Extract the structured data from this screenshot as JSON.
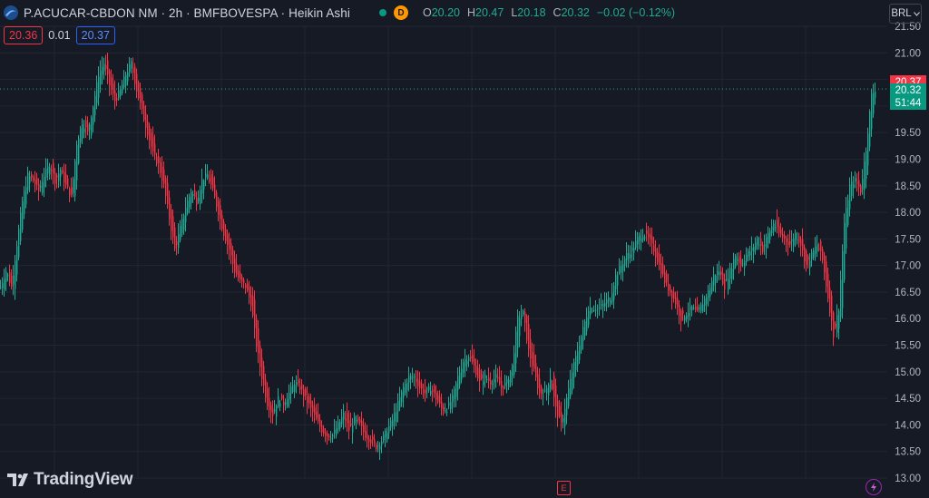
{
  "header": {
    "symbol_title": "P.ACUCAR-CBDON NM · 2h · BMFBOVESPA · Heikin Ashi",
    "delay_badge": "D",
    "ohlc": {
      "o_label": "O",
      "o": "20.20",
      "h_label": "H",
      "h": "20.47",
      "l_label": "L",
      "l": "20.18",
      "c_label": "C",
      "c": "20.32",
      "change": "−0.02 (−0.12%)"
    }
  },
  "trade": {
    "sell": "20.36",
    "spread": "0.01",
    "buy": "20.37"
  },
  "currency": "BRL",
  "branding": "TradingView",
  "markers": {
    "earnings": "E"
  },
  "colors": {
    "up": "#22ab94",
    "down": "#f23645",
    "bg": "#161a25",
    "grid": "#232632",
    "ask_label": "#f23645",
    "last_label": "#089981"
  },
  "price_labels": {
    "ask": "20.37",
    "last": "20.32",
    "countdown": "51:44"
  },
  "chart_data": {
    "type": "candlestick",
    "style": "Heikin Ashi",
    "interval": "2h",
    "ylim": [
      13.0,
      21.5
    ],
    "y_ticks": [
      "21.50",
      "21.00",
      "20.50",
      "20.00",
      "19.50",
      "19.00",
      "18.50",
      "18.00",
      "17.50",
      "17.00",
      "16.50",
      "16.00",
      "15.50",
      "15.00",
      "14.50",
      "14.00",
      "13.50",
      "13.00"
    ],
    "y_ticks_shown": [
      "21.50",
      "21.00",
      "19.50",
      "19.00",
      "18.50",
      "18.00",
      "17.50",
      "17.00",
      "16.50",
      "16.00",
      "15.50",
      "15.00",
      "14.50",
      "14.00",
      "13.50",
      "13.00"
    ],
    "last_price": 20.32,
    "close_path": [
      [
        0,
        16.6
      ],
      [
        6,
        16.9
      ],
      [
        12,
        16.6
      ],
      [
        18,
        17.4
      ],
      [
        24,
        18.2
      ],
      [
        30,
        18.7
      ],
      [
        36,
        18.6
      ],
      [
        42,
        18.4
      ],
      [
        48,
        18.7
      ],
      [
        54,
        18.9
      ],
      [
        60,
        18.6
      ],
      [
        66,
        18.8
      ],
      [
        72,
        18.5
      ],
      [
        78,
        18.3
      ],
      [
        84,
        19.3
      ],
      [
        90,
        19.7
      ],
      [
        96,
        19.5
      ],
      [
        102,
        20.0
      ],
      [
        108,
        20.6
      ],
      [
        114,
        20.8
      ],
      [
        120,
        20.4
      ],
      [
        126,
        20.1
      ],
      [
        132,
        20.3
      ],
      [
        138,
        20.6
      ],
      [
        144,
        20.8
      ],
      [
        150,
        20.3
      ],
      [
        156,
        19.9
      ],
      [
        162,
        19.5
      ],
      [
        168,
        19.1
      ],
      [
        174,
        18.9
      ],
      [
        180,
        18.5
      ],
      [
        186,
        17.9
      ],
      [
        192,
        17.3
      ],
      [
        198,
        17.7
      ],
      [
        204,
        18.1
      ],
      [
        210,
        18.4
      ],
      [
        216,
        18.2
      ],
      [
        222,
        18.6
      ],
      [
        228,
        18.7
      ],
      [
        234,
        18.4
      ],
      [
        240,
        18.0
      ],
      [
        246,
        17.6
      ],
      [
        252,
        17.3
      ],
      [
        258,
        16.9
      ],
      [
        264,
        16.7
      ],
      [
        270,
        16.6
      ],
      [
        276,
        16.3
      ],
      [
        282,
        15.5
      ],
      [
        288,
        14.9
      ],
      [
        294,
        14.4
      ],
      [
        300,
        14.2
      ],
      [
        306,
        14.5
      ],
      [
        312,
        14.4
      ],
      [
        318,
        14.6
      ],
      [
        324,
        14.8
      ],
      [
        330,
        14.7
      ],
      [
        336,
        14.5
      ],
      [
        342,
        14.3
      ],
      [
        348,
        14.1
      ],
      [
        354,
        13.9
      ],
      [
        360,
        13.8
      ],
      [
        366,
        13.8
      ],
      [
        372,
        14.0
      ],
      [
        378,
        14.2
      ],
      [
        384,
        13.9
      ],
      [
        390,
        14.1
      ],
      [
        396,
        14.0
      ],
      [
        402,
        13.8
      ],
      [
        408,
        13.7
      ],
      [
        414,
        13.6
      ],
      [
        420,
        13.7
      ],
      [
        426,
        13.9
      ],
      [
        432,
        14.1
      ],
      [
        438,
        14.4
      ],
      [
        444,
        14.7
      ],
      [
        450,
        14.9
      ],
      [
        456,
        14.9
      ],
      [
        462,
        14.7
      ],
      [
        468,
        14.6
      ],
      [
        474,
        14.7
      ],
      [
        480,
        14.5
      ],
      [
        486,
        14.3
      ],
      [
        492,
        14.3
      ],
      [
        498,
        14.5
      ],
      [
        504,
        14.9
      ],
      [
        510,
        15.2
      ],
      [
        516,
        15.3
      ],
      [
        522,
        15.1
      ],
      [
        528,
        14.8
      ],
      [
        534,
        14.9
      ],
      [
        540,
        14.8
      ],
      [
        546,
        14.9
      ],
      [
        552,
        14.7
      ],
      [
        558,
        14.8
      ],
      [
        564,
        15.1
      ],
      [
        570,
        16.0
      ],
      [
        576,
        16.1
      ],
      [
        582,
        15.4
      ],
      [
        588,
        15.0
      ],
      [
        594,
        14.6
      ],
      [
        600,
        14.6
      ],
      [
        606,
        14.9
      ],
      [
        612,
        14.3
      ],
      [
        618,
        14.0
      ],
      [
        624,
        14.5
      ],
      [
        630,
        15.0
      ],
      [
        636,
        15.4
      ],
      [
        642,
        15.8
      ],
      [
        648,
        16.2
      ],
      [
        654,
        16.2
      ],
      [
        660,
        16.2
      ],
      [
        666,
        16.3
      ],
      [
        672,
        16.4
      ],
      [
        678,
        16.8
      ],
      [
        684,
        17.0
      ],
      [
        690,
        17.2
      ],
      [
        696,
        17.3
      ],
      [
        702,
        17.5
      ],
      [
        708,
        17.6
      ],
      [
        714,
        17.5
      ],
      [
        720,
        17.3
      ],
      [
        726,
        17.0
      ],
      [
        732,
        16.7
      ],
      [
        738,
        16.5
      ],
      [
        744,
        16.3
      ],
      [
        750,
        16.0
      ],
      [
        756,
        16.1
      ],
      [
        762,
        16.2
      ],
      [
        768,
        16.1
      ],
      [
        774,
        16.3
      ],
      [
        780,
        16.5
      ],
      [
        786,
        16.8
      ],
      [
        792,
        16.9
      ],
      [
        798,
        16.6
      ],
      [
        804,
        16.9
      ],
      [
        810,
        17.2
      ],
      [
        816,
        17.0
      ],
      [
        822,
        17.2
      ],
      [
        828,
        17.3
      ],
      [
        834,
        17.5
      ],
      [
        840,
        17.3
      ],
      [
        846,
        17.6
      ],
      [
        852,
        17.8
      ],
      [
        858,
        17.6
      ],
      [
        864,
        17.5
      ],
      [
        870,
        17.4
      ],
      [
        876,
        17.6
      ],
      [
        882,
        17.4
      ],
      [
        888,
        17.0
      ],
      [
        894,
        17.2
      ],
      [
        900,
        17.4
      ],
      [
        906,
        17.1
      ],
      [
        912,
        16.4
      ],
      [
        918,
        15.7
      ],
      [
        924,
        16.2
      ],
      [
        930,
        17.8
      ],
      [
        936,
        18.5
      ],
      [
        942,
        18.6
      ],
      [
        948,
        18.4
      ],
      [
        954,
        19.2
      ],
      [
        960,
        20.2
      ],
      [
        964,
        20.32
      ]
    ]
  }
}
